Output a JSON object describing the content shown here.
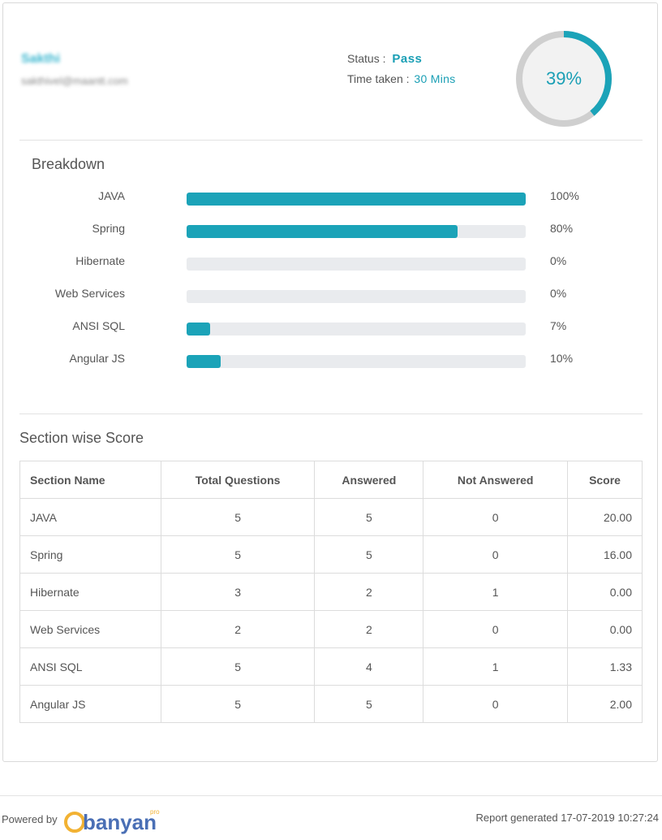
{
  "candidate": {
    "name": "Sakthi",
    "email": "sakthivel@maantt.com"
  },
  "result": {
    "status_label": "Status :",
    "status_value": "Pass",
    "time_label": "Time taken :",
    "time_value": "30 Mins",
    "score_percent": 39,
    "score_text": "39%"
  },
  "colors": {
    "accent": "#1ba3b8",
    "track": "#e9ebee",
    "donut_track": "#cfcfcf",
    "donut_center": "#f2f2f2"
  },
  "breakdown": {
    "title": "Breakdown",
    "items": [
      {
        "label": "JAVA",
        "percent": 100,
        "percent_text": "100%"
      },
      {
        "label": "Spring",
        "percent": 80,
        "percent_text": "80%"
      },
      {
        "label": "Hibernate",
        "percent": 0,
        "percent_text": "0%"
      },
      {
        "label": "Web Services",
        "percent": 0,
        "percent_text": "0%"
      },
      {
        "label": "ANSI SQL",
        "percent": 7,
        "percent_text": "7%"
      },
      {
        "label": "Angular JS",
        "percent": 10,
        "percent_text": "10%"
      }
    ]
  },
  "section_scores": {
    "title": "Section wise Score",
    "columns": [
      "Section Name",
      "Total Questions",
      "Answered",
      "Not Answered",
      "Score"
    ],
    "rows": [
      [
        "JAVA",
        "5",
        "5",
        "0",
        "20.00"
      ],
      [
        "Spring",
        "5",
        "5",
        "0",
        "16.00"
      ],
      [
        "Hibernate",
        "3",
        "2",
        "1",
        "0.00"
      ],
      [
        "Web Services",
        "2",
        "2",
        "0",
        "0.00"
      ],
      [
        "ANSI SQL",
        "5",
        "4",
        "1",
        "1.33"
      ],
      [
        "Angular JS",
        "5",
        "5",
        "0",
        "2.00"
      ]
    ]
  },
  "footer": {
    "powered_by": "Powered by",
    "logo_text": "banyan",
    "logo_sup": "pro",
    "report_generated": "Report generated 17-07-2019 10:27:24"
  }
}
